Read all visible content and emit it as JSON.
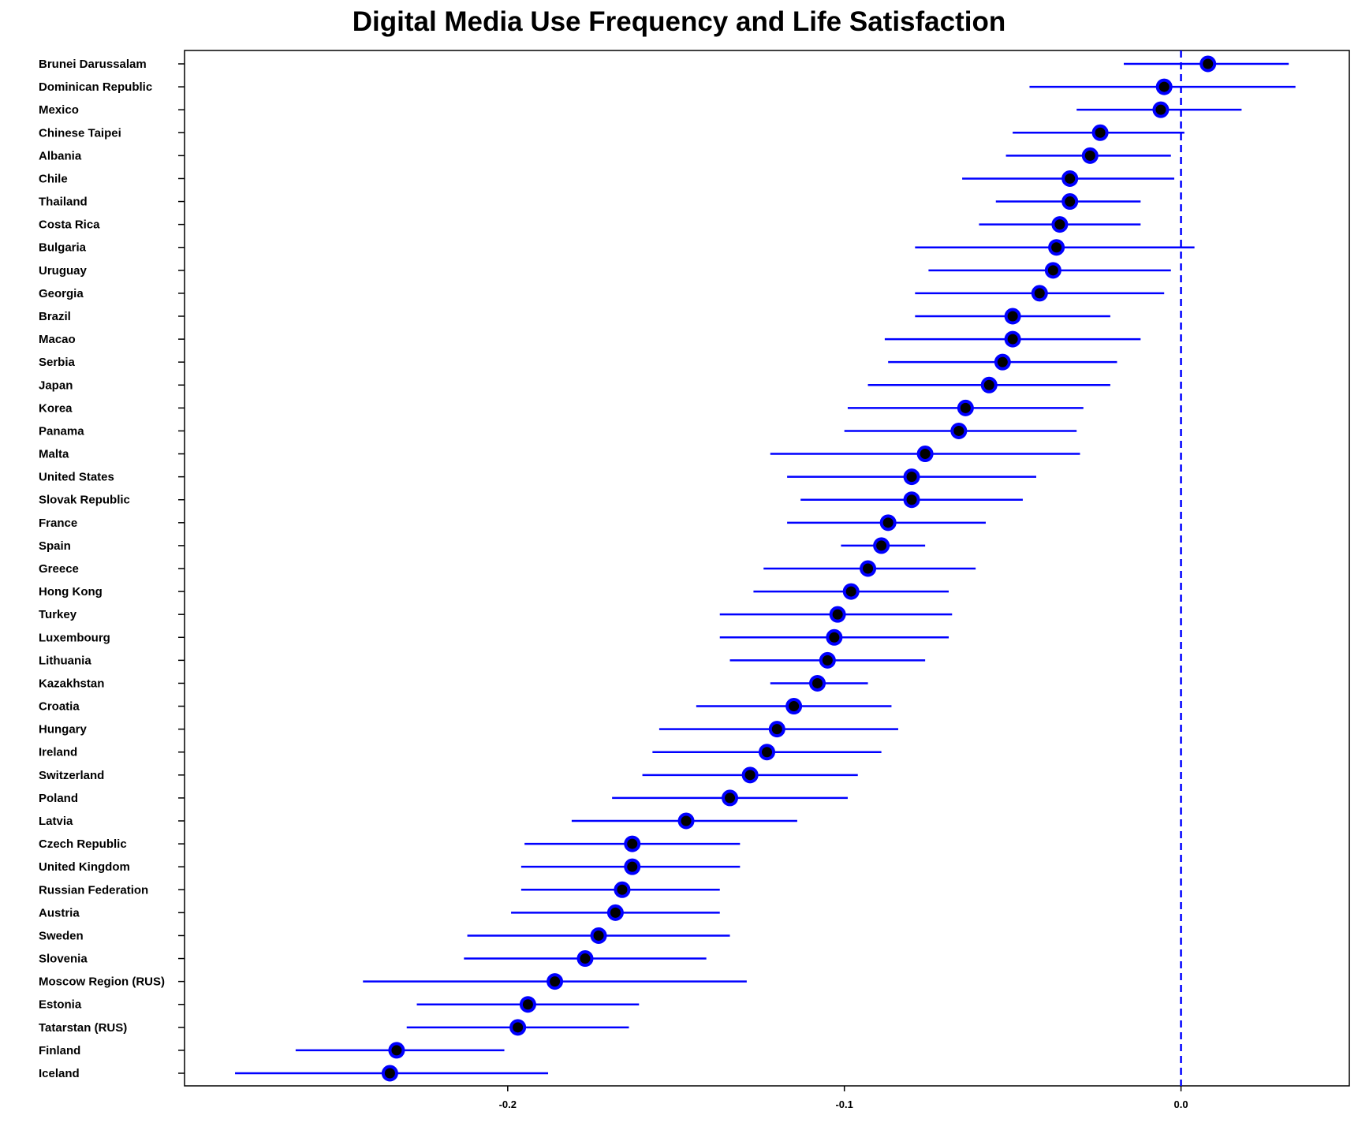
{
  "chart_data": {
    "type": "scatter",
    "title": "Digital Media Use Frequency and Life Satisfaction",
    "xlabel": "",
    "ylabel": "",
    "xlim": [
      -0.296,
      0.05
    ],
    "x_ticks": [
      -0.2,
      -0.1,
      0.0
    ],
    "x_tick_labels": [
      "-0.2",
      "-0.1",
      "0.0"
    ],
    "reference_line": 0.0,
    "grid": false,
    "colors": {
      "marker_fill": "#000000",
      "marker_edge": "#0000ff",
      "error_bar": "#0000ff",
      "reference_line": "#0000ff"
    },
    "points": [
      {
        "country": "Brunei Darussalam",
        "value": 0.008,
        "ci_low": -0.017,
        "ci_high": 0.032
      },
      {
        "country": "Dominican Republic",
        "value": -0.005,
        "ci_low": -0.045,
        "ci_high": 0.034
      },
      {
        "country": "Mexico",
        "value": -0.006,
        "ci_low": -0.031,
        "ci_high": 0.018
      },
      {
        "country": "Chinese Taipei",
        "value": -0.024,
        "ci_low": -0.05,
        "ci_high": 0.001
      },
      {
        "country": "Albania",
        "value": -0.027,
        "ci_low": -0.052,
        "ci_high": -0.003
      },
      {
        "country": "Chile",
        "value": -0.033,
        "ci_low": -0.065,
        "ci_high": -0.002
      },
      {
        "country": "Thailand",
        "value": -0.033,
        "ci_low": -0.055,
        "ci_high": -0.012
      },
      {
        "country": "Costa Rica",
        "value": -0.036,
        "ci_low": -0.06,
        "ci_high": -0.012
      },
      {
        "country": "Bulgaria",
        "value": -0.037,
        "ci_low": -0.079,
        "ci_high": 0.004
      },
      {
        "country": "Uruguay",
        "value": -0.038,
        "ci_low": -0.075,
        "ci_high": -0.003
      },
      {
        "country": "Georgia",
        "value": -0.042,
        "ci_low": -0.079,
        "ci_high": -0.005
      },
      {
        "country": "Brazil",
        "value": -0.05,
        "ci_low": -0.079,
        "ci_high": -0.021
      },
      {
        "country": "Macao",
        "value": -0.05,
        "ci_low": -0.088,
        "ci_high": -0.012
      },
      {
        "country": "Serbia",
        "value": -0.053,
        "ci_low": -0.087,
        "ci_high": -0.019
      },
      {
        "country": "Japan",
        "value": -0.057,
        "ci_low": -0.093,
        "ci_high": -0.021
      },
      {
        "country": "Korea",
        "value": -0.064,
        "ci_low": -0.099,
        "ci_high": -0.029
      },
      {
        "country": "Panama",
        "value": -0.066,
        "ci_low": -0.1,
        "ci_high": -0.031
      },
      {
        "country": "Malta",
        "value": -0.076,
        "ci_low": -0.122,
        "ci_high": -0.03
      },
      {
        "country": "United States",
        "value": -0.08,
        "ci_low": -0.117,
        "ci_high": -0.043
      },
      {
        "country": "Slovak Republic",
        "value": -0.08,
        "ci_low": -0.113,
        "ci_high": -0.047
      },
      {
        "country": "France",
        "value": -0.087,
        "ci_low": -0.117,
        "ci_high": -0.058
      },
      {
        "country": "Spain",
        "value": -0.089,
        "ci_low": -0.101,
        "ci_high": -0.076
      },
      {
        "country": "Greece",
        "value": -0.093,
        "ci_low": -0.124,
        "ci_high": -0.061
      },
      {
        "country": "Hong Kong",
        "value": -0.098,
        "ci_low": -0.127,
        "ci_high": -0.069
      },
      {
        "country": "Turkey",
        "value": -0.102,
        "ci_low": -0.137,
        "ci_high": -0.068
      },
      {
        "country": "Luxembourg",
        "value": -0.103,
        "ci_low": -0.137,
        "ci_high": -0.069
      },
      {
        "country": "Lithuania",
        "value": -0.105,
        "ci_low": -0.134,
        "ci_high": -0.076
      },
      {
        "country": "Kazakhstan",
        "value": -0.108,
        "ci_low": -0.122,
        "ci_high": -0.093
      },
      {
        "country": "Croatia",
        "value": -0.115,
        "ci_low": -0.144,
        "ci_high": -0.086
      },
      {
        "country": "Hungary",
        "value": -0.12,
        "ci_low": -0.155,
        "ci_high": -0.084
      },
      {
        "country": "Ireland",
        "value": -0.123,
        "ci_low": -0.157,
        "ci_high": -0.089
      },
      {
        "country": "Switzerland",
        "value": -0.128,
        "ci_low": -0.16,
        "ci_high": -0.096
      },
      {
        "country": "Poland",
        "value": -0.134,
        "ci_low": -0.169,
        "ci_high": -0.099
      },
      {
        "country": "Latvia",
        "value": -0.147,
        "ci_low": -0.181,
        "ci_high": -0.114
      },
      {
        "country": "Czech Republic",
        "value": -0.163,
        "ci_low": -0.195,
        "ci_high": -0.131
      },
      {
        "country": "United Kingdom",
        "value": -0.163,
        "ci_low": -0.196,
        "ci_high": -0.131
      },
      {
        "country": "Russian Federation",
        "value": -0.166,
        "ci_low": -0.196,
        "ci_high": -0.137
      },
      {
        "country": "Austria",
        "value": -0.168,
        "ci_low": -0.199,
        "ci_high": -0.137
      },
      {
        "country": "Sweden",
        "value": -0.173,
        "ci_low": -0.212,
        "ci_high": -0.134
      },
      {
        "country": "Slovenia",
        "value": -0.177,
        "ci_low": -0.213,
        "ci_high": -0.141
      },
      {
        "country": "Moscow Region (RUS)",
        "value": -0.186,
        "ci_low": -0.243,
        "ci_high": -0.129
      },
      {
        "country": "Estonia",
        "value": -0.194,
        "ci_low": -0.227,
        "ci_high": -0.161
      },
      {
        "country": "Tatarstan (RUS)",
        "value": -0.197,
        "ci_low": -0.23,
        "ci_high": -0.164
      },
      {
        "country": "Finland",
        "value": -0.233,
        "ci_low": -0.263,
        "ci_high": -0.201
      },
      {
        "country": "Iceland",
        "value": -0.235,
        "ci_low": -0.281,
        "ci_high": -0.188
      }
    ]
  }
}
